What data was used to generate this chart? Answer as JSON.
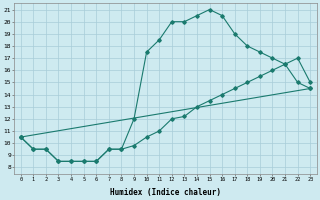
{
  "line1_x": [
    0,
    1,
    2,
    3,
    4,
    5,
    6,
    7,
    8,
    9,
    10,
    11,
    12,
    13,
    14,
    15,
    16,
    17,
    18,
    19,
    20,
    21,
    22,
    23
  ],
  "line1_y": [
    10.5,
    9.5,
    9.5,
    8.5,
    8.5,
    8.5,
    8.5,
    9.5,
    9.5,
    12.0,
    17.5,
    18.5,
    20.0,
    20.0,
    20.5,
    21.0,
    20.5,
    19.0,
    18.0,
    17.5,
    17.0,
    16.5,
    15.0,
    14.5
  ],
  "line2_x": [
    0,
    1,
    2,
    3,
    4,
    5,
    6,
    7,
    8,
    9,
    10,
    11,
    12,
    13,
    14,
    15,
    16,
    17,
    18,
    19,
    20,
    21,
    22,
    23
  ],
  "line2_y": [
    10.5,
    9.5,
    9.5,
    8.5,
    8.5,
    8.5,
    8.5,
    9.5,
    9.5,
    9.8,
    10.5,
    11.0,
    12.0,
    12.2,
    13.0,
    13.5,
    14.0,
    14.5,
    15.0,
    15.5,
    16.0,
    16.5,
    17.0,
    15.0
  ],
  "line3_x": [
    0,
    23
  ],
  "line3_y": [
    10.5,
    14.5
  ],
  "line_color": "#1a7a6e",
  "bg_color": "#ceeaf0",
  "grid_color": "#a8cdd8",
  "xlabel": "Humidex (Indice chaleur)",
  "xlim": [
    -0.5,
    23.5
  ],
  "ylim": [
    7.5,
    21.5
  ],
  "xticks": [
    0,
    1,
    2,
    3,
    4,
    5,
    6,
    7,
    8,
    9,
    10,
    11,
    12,
    13,
    14,
    15,
    16,
    17,
    18,
    19,
    20,
    21,
    22,
    23
  ],
  "yticks": [
    8,
    9,
    10,
    11,
    12,
    13,
    14,
    15,
    16,
    17,
    18,
    19,
    20,
    21
  ]
}
